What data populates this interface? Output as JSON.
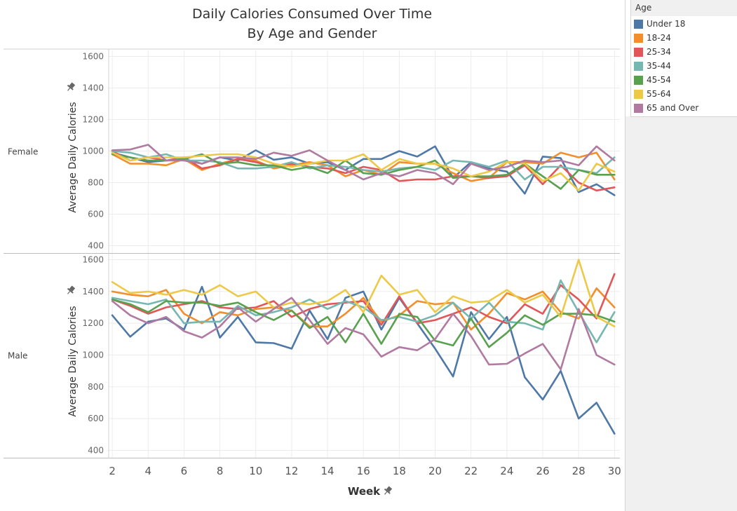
{
  "chart_data": {
    "type": "line",
    "title_line1": "Daily Calories Consumed Over Time",
    "title_line2": "By Age and Gender",
    "xlabel": "Week",
    "ylabel": "Average Daily Calories",
    "x": [
      2,
      3,
      4,
      5,
      6,
      7,
      8,
      9,
      10,
      11,
      12,
      13,
      14,
      15,
      16,
      17,
      18,
      19,
      20,
      21,
      22,
      23,
      24,
      25,
      26,
      27,
      28,
      29,
      30
    ],
    "x_ticks": [
      2,
      4,
      6,
      8,
      10,
      12,
      14,
      16,
      18,
      20,
      22,
      24,
      26,
      28,
      30
    ],
    "ylim": [
      380,
      1620
    ],
    "y_ticks": [
      400,
      600,
      800,
      1000,
      1200,
      1400,
      1600
    ],
    "legend_title": "Age",
    "legend_position": "top-right",
    "grid": true,
    "series_names": [
      "Under 18",
      "18-24",
      "25-34",
      "35-44",
      "45-54",
      "55-64",
      "65 and Over"
    ],
    "colors": [
      "#4e79a7",
      "#f28e2b",
      "#e15759",
      "#76b7b2",
      "#59a14f",
      "#edc948",
      "#b07aa1"
    ],
    "panels": [
      {
        "label": "Female",
        "series": [
          {
            "name": "Under 18",
            "values": [
              990,
              960,
              930,
              940,
              950,
              920,
              960,
              940,
              1005,
              945,
              960,
              920,
              930,
              880,
              950,
              950,
              1000,
              965,
              1030,
              830,
              930,
              890,
              870,
              730,
              965,
              955,
              740,
              790,
              720
            ]
          },
          {
            "name": "18-24",
            "values": [
              980,
              920,
              920,
              910,
              950,
              880,
              920,
              950,
              940,
              890,
              910,
              930,
              910,
              840,
              880,
              850,
              930,
              920,
              920,
              860,
              810,
              830,
              930,
              930,
              920,
              990,
              960,
              990,
              820
            ]
          },
          {
            "name": "25-34",
            "values": [
              1000,
              940,
              960,
              940,
              960,
              890,
              910,
              950,
              930,
              900,
              920,
              900,
              890,
              860,
              900,
              880,
              810,
              820,
              820,
              840,
              840,
              830,
              840,
              910,
              790,
              910,
              800,
              750,
              770
            ]
          },
          {
            "name": "35-44",
            "values": [
              1000,
              990,
              960,
              980,
              940,
              940,
              930,
              890,
              890,
              900,
              930,
              890,
              910,
              900,
              880,
              870,
              890,
              900,
              880,
              940,
              930,
              900,
              940,
              820,
              900,
              900,
              880,
              860,
              960
            ]
          },
          {
            "name": "45-54",
            "values": [
              980,
              960,
              940,
              940,
              950,
              980,
              920,
              930,
              910,
              910,
              880,
              900,
              860,
              940,
              860,
              850,
              880,
              900,
              940,
              830,
              840,
              840,
              850,
              920,
              840,
              760,
              880,
              850,
              850
            ]
          },
          {
            "name": "55-64",
            "values": [
              990,
              940,
              960,
              960,
              960,
              970,
              980,
              980,
              960,
              920,
              900,
              920,
              940,
              940,
              980,
              880,
              950,
              920,
              920,
              890,
              840,
              870,
              930,
              920,
              810,
              860,
              750,
              920,
              870
            ]
          },
          {
            "name": "65 and Over",
            "values": [
              1005,
              1010,
              1040,
              940,
              940,
              920,
              960,
              960,
              950,
              990,
              970,
              1005,
              940,
              880,
              820,
              860,
              840,
              880,
              860,
              790,
              920,
              880,
              900,
              940,
              930,
              940,
              910,
              1030,
              940
            ]
          }
        ]
      },
      {
        "label": "Male",
        "series": [
          {
            "name": "Under 18",
            "values": [
              1250,
              1115,
              1210,
              1230,
              1160,
              1430,
              1110,
              1240,
              1080,
              1075,
              1040,
              1280,
              1100,
              1360,
              1400,
              1160,
              1360,
              1200,
              1040,
              865,
              1270,
              1100,
              1240,
              860,
              720,
              900,
              600,
              700,
              505
            ]
          },
          {
            "name": "18-24",
            "values": [
              1400,
              1380,
              1370,
              1410,
              1260,
              1200,
              1270,
              1250,
              1290,
              1300,
              1280,
              1180,
              1180,
              1260,
              1360,
              1210,
              1250,
              1340,
              1320,
              1330,
              1160,
              1260,
              1390,
              1350,
              1400,
              1270,
              1230,
              1420,
              1300
            ]
          },
          {
            "name": "25-34",
            "values": [
              1350,
              1310,
              1260,
              1300,
              1320,
              1340,
              1300,
              1290,
              1300,
              1340,
              1240,
              1290,
              1320,
              1330,
              1340,
              1190,
              1370,
              1200,
              1220,
              1260,
              1300,
              1240,
              1200,
              1320,
              1260,
              1440,
              1350,
              1230,
              1510
            ]
          },
          {
            "name": "35-44",
            "values": [
              1360,
              1340,
              1320,
              1350,
              1200,
              1210,
              1210,
              1310,
              1250,
              1270,
              1300,
              1350,
              1290,
              1340,
              1300,
              1220,
              1240,
              1210,
              1250,
              1330,
              1230,
              1330,
              1210,
              1200,
              1160,
              1470,
              1270,
              1080,
              1270
            ]
          },
          {
            "name": "45-54",
            "values": [
              1350,
              1320,
              1270,
              1340,
              1330,
              1330,
              1310,
              1330,
              1270,
              1220,
              1280,
              1170,
              1240,
              1080,
              1260,
              1070,
              1260,
              1240,
              1090,
              1060,
              1230,
              1050,
              1140,
              1250,
              1190,
              1260,
              1260,
              1250,
              1210
            ]
          },
          {
            "name": "55-64",
            "values": [
              1460,
              1390,
              1400,
              1380,
              1410,
              1380,
              1440,
              1370,
              1400,
              1300,
              1330,
              1320,
              1340,
              1410,
              1270,
              1500,
              1380,
              1410,
              1270,
              1370,
              1330,
              1340,
              1410,
              1330,
              1380,
              1240,
              1600,
              1240,
              1180
            ]
          },
          {
            "name": "65 and Over",
            "values": [
              1340,
              1250,
              1200,
              1240,
              1150,
              1110,
              1180,
              1300,
              1210,
              1290,
              1360,
              1220,
              1070,
              1170,
              1130,
              990,
              1050,
              1030,
              1100,
              1260,
              1120,
              940,
              945,
              1010,
              1070,
              910,
              1290,
              1000,
              940
            ]
          }
        ]
      }
    ]
  }
}
